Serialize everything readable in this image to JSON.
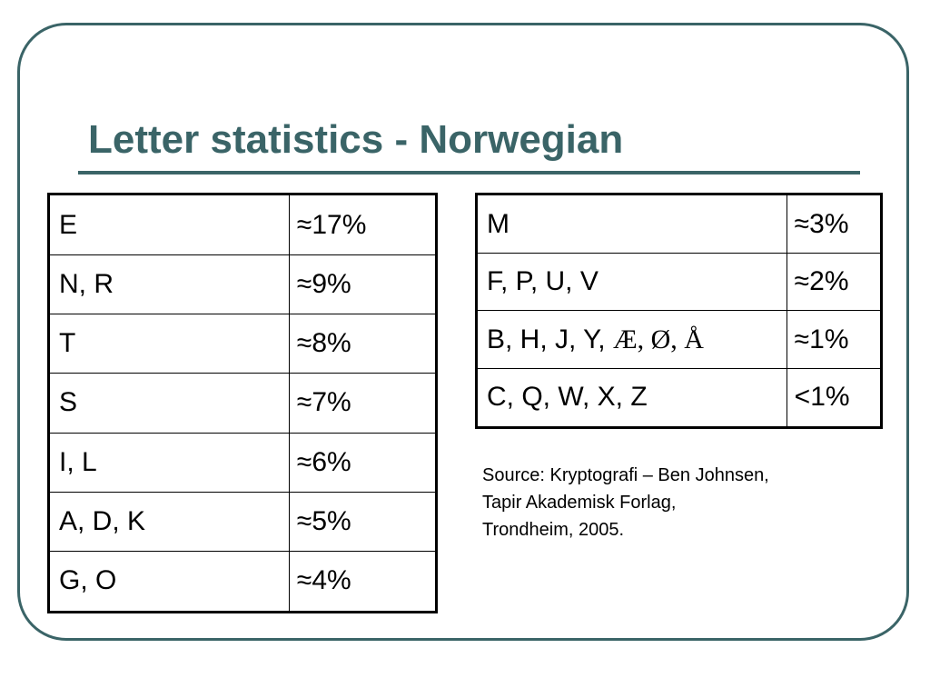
{
  "slide": {
    "title": "Letter statistics - Norwegian",
    "accent_color": "#3a6467"
  },
  "left_table": {
    "rows": [
      {
        "letters": "E",
        "frequency": "≈17%"
      },
      {
        "letters": "N, R",
        "frequency": "≈9%"
      },
      {
        "letters": "T",
        "frequency": "≈8%"
      },
      {
        "letters": "S",
        "frequency": "≈7%"
      },
      {
        "letters": "I, L",
        "frequency": "≈6%"
      },
      {
        "letters": "A, D, K",
        "frequency": "≈5%"
      },
      {
        "letters": "G, O",
        "frequency": "≈4%"
      }
    ]
  },
  "right_table": {
    "rows": [
      {
        "letters": "M",
        "frequency": "≈3%"
      },
      {
        "letters": "F, P, U, V",
        "frequency": "≈2%"
      },
      {
        "letters": "B, H, J, Y, ",
        "letters_special": "Æ, Ø, Å",
        "frequency": "≈1%"
      },
      {
        "letters": "C, Q, W, X, Z",
        "frequency": "<1%"
      }
    ]
  },
  "source": {
    "line1": "Source: Kryptografi – Ben Johnsen,",
    "line2": "Tapir Akademisk Forlag,",
    "line3": "Trondheim, 2005."
  }
}
